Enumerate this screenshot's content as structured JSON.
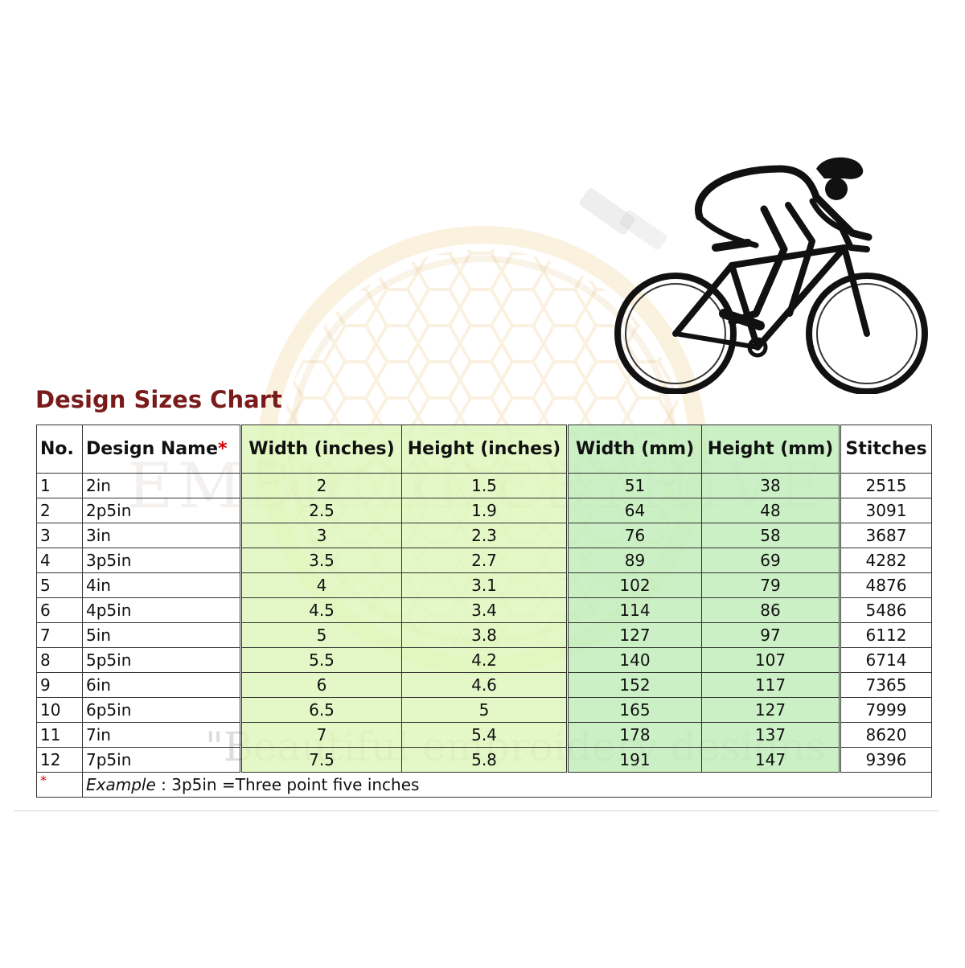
{
  "title": "Design Sizes Chart",
  "watermark": {
    "brand": "EMBROIDERYHIVE",
    "tagline": "\"Beautiful embroidery designs"
  },
  "colors": {
    "title": "#7a1b1b",
    "inch_fill": "#ddf6ba",
    "mm_fill": "#c2eebc",
    "asterisk": "#d40000"
  },
  "table": {
    "headers": {
      "no": "No.",
      "design_name": "Design Name",
      "design_name_mark": "*",
      "width_in": "Width (inches)",
      "height_in": "Height (inches)",
      "width_mm": "Width (mm)",
      "height_mm": "Height (mm)",
      "stitches": "Stitches"
    },
    "rows": [
      {
        "no": "1",
        "name": "2in",
        "w_in": "2",
        "h_in": "1.5",
        "w_mm": "51",
        "h_mm": "38",
        "stitches": "2515"
      },
      {
        "no": "2",
        "name": "2p5in",
        "w_in": "2.5",
        "h_in": "1.9",
        "w_mm": "64",
        "h_mm": "48",
        "stitches": "3091"
      },
      {
        "no": "3",
        "name": "3in",
        "w_in": "3",
        "h_in": "2.3",
        "w_mm": "76",
        "h_mm": "58",
        "stitches": "3687"
      },
      {
        "no": "4",
        "name": "3p5in",
        "w_in": "3.5",
        "h_in": "2.7",
        "w_mm": "89",
        "h_mm": "69",
        "stitches": "4282"
      },
      {
        "no": "5",
        "name": "4in",
        "w_in": "4",
        "h_in": "3.1",
        "w_mm": "102",
        "h_mm": "79",
        "stitches": "4876"
      },
      {
        "no": "6",
        "name": "4p5in",
        "w_in": "4.5",
        "h_in": "3.4",
        "w_mm": "114",
        "h_mm": "86",
        "stitches": "5486"
      },
      {
        "no": "7",
        "name": "5in",
        "w_in": "5",
        "h_in": "3.8",
        "w_mm": "127",
        "h_mm": "97",
        "stitches": "6112"
      },
      {
        "no": "8",
        "name": "5p5in",
        "w_in": "5.5",
        "h_in": "4.2",
        "w_mm": "140",
        "h_mm": "107",
        "stitches": "6714"
      },
      {
        "no": "9",
        "name": "6in",
        "w_in": "6",
        "h_in": "4.6",
        "w_mm": "152",
        "h_mm": "117",
        "stitches": "7365"
      },
      {
        "no": "10",
        "name": "6p5in",
        "w_in": "6.5",
        "h_in": "5",
        "w_mm": "165",
        "h_mm": "127",
        "stitches": "7999"
      },
      {
        "no": "11",
        "name": "7in",
        "w_in": "7",
        "h_in": "5.4",
        "w_mm": "178",
        "h_mm": "137",
        "stitches": "8620"
      },
      {
        "no": "12",
        "name": "7p5in",
        "w_in": "7.5",
        "h_in": "5.8",
        "w_mm": "191",
        "h_mm": "147",
        "stitches": "9396"
      }
    ],
    "footnote": {
      "mark": "*",
      "example_label": "Example",
      "text": " : 3p5in =Three point five inches"
    }
  },
  "illustration": "cyclist-icon"
}
